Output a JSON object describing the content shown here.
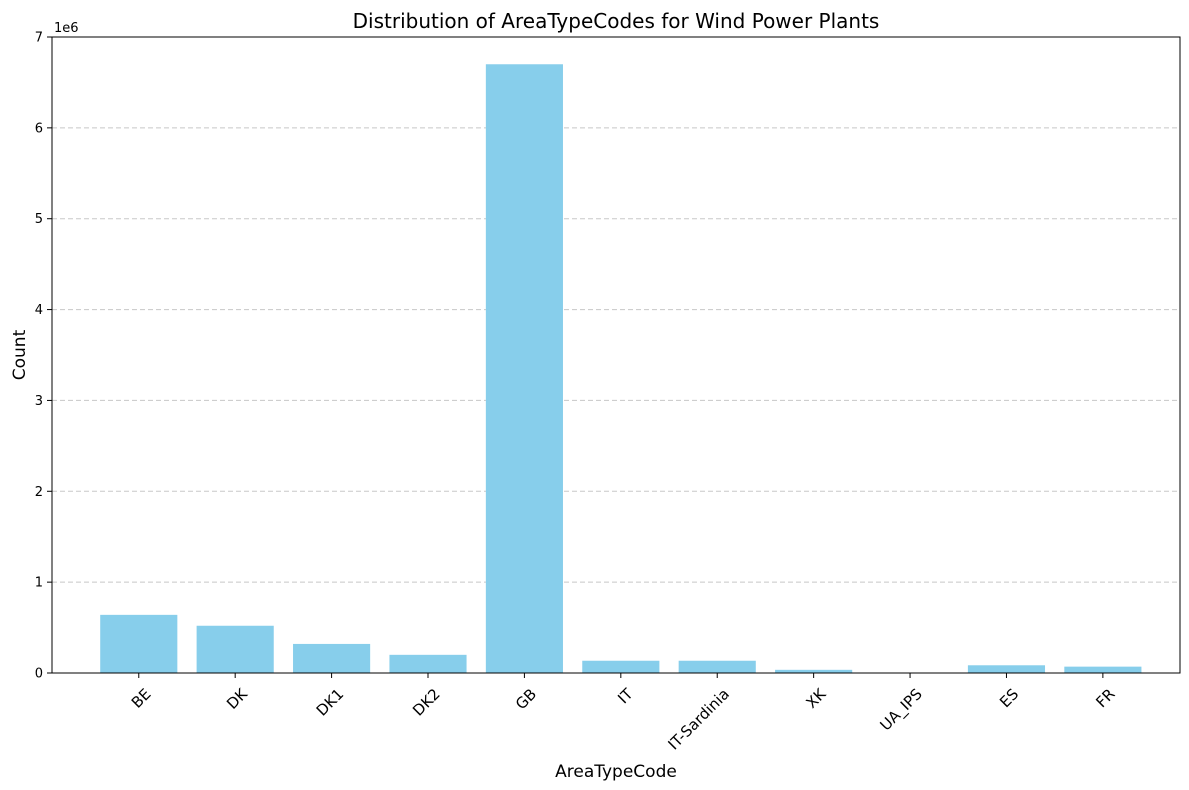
{
  "chart_data": {
    "type": "bar",
    "title": "Distribution of AreaTypeCodes for Wind Power Plants",
    "xlabel": "AreaTypeCode",
    "ylabel": "Count",
    "scale_label": "1e6",
    "categories": [
      "BE",
      "DK",
      "DK1",
      "DK2",
      "GB",
      "IT",
      "IT-Sardinia",
      "XK",
      "UA_IPS",
      "ES",
      "FR"
    ],
    "values": [
      640000,
      520000,
      320000,
      200000,
      6700000,
      135000,
      135000,
      35000,
      5000,
      85000,
      70000
    ],
    "ylim": [
      0,
      7000000
    ],
    "yticks": [
      0,
      1000000,
      2000000,
      3000000,
      4000000,
      5000000,
      6000000,
      7000000
    ],
    "ytick_labels": [
      "0",
      "1",
      "2",
      "3",
      "4",
      "5",
      "6",
      "7"
    ],
    "grid": "horizontal dashed",
    "bar_color": "#87ceeb",
    "grid_color": "#c8c8c8"
  }
}
